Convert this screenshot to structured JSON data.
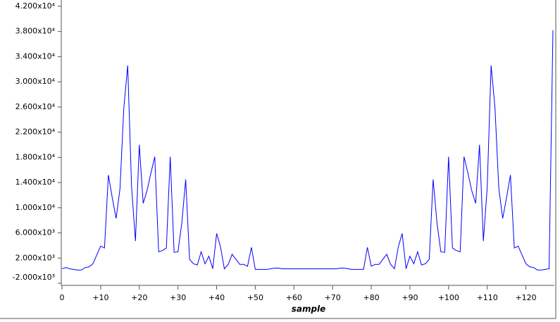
{
  "chart_data": {
    "type": "line",
    "x_label": "sample",
    "x": [
      0,
      1,
      2,
      3,
      4,
      5,
      6,
      7,
      8,
      9,
      10,
      11,
      12,
      13,
      14,
      15,
      16,
      17,
      18,
      19,
      20,
      21,
      22,
      23,
      24,
      25,
      26,
      27,
      28,
      29,
      30,
      31,
      32,
      33,
      34,
      35,
      36,
      37,
      38,
      39,
      40,
      41,
      42,
      43,
      44,
      45,
      46,
      47,
      48,
      49,
      50,
      51,
      52,
      53,
      54,
      55,
      56,
      57,
      58,
      59,
      60,
      61,
      62,
      63,
      64,
      65,
      66,
      67,
      68,
      69,
      70,
      71,
      72,
      73,
      74,
      75,
      76,
      77,
      78,
      79,
      80,
      81,
      82,
      83,
      84,
      85,
      86,
      87,
      88,
      89,
      90,
      91,
      92,
      93,
      94,
      95,
      96,
      97,
      98,
      99,
      100,
      101,
      102,
      103,
      104,
      105,
      106,
      107,
      108,
      109,
      110,
      111,
      112,
      113,
      114,
      115,
      116,
      117,
      118,
      119,
      120,
      121,
      122,
      123,
      124,
      125,
      126,
      127
    ],
    "series": [
      {
        "color": "#0000ff",
        "values": [
          300,
          500,
          300,
          200,
          100,
          100,
          500,
          600,
          1100,
          2500,
          3900,
          3600,
          15200,
          11600,
          8300,
          13000,
          25900,
          32600,
          13300,
          4700,
          20000,
          10700,
          12700,
          15500,
          18100,
          3000,
          3200,
          3600,
          18100,
          2900,
          3000,
          7600,
          14500,
          1800,
          1100,
          900,
          3000,
          1100,
          2300,
          300,
          5900,
          3800,
          300,
          1000,
          2600,
          1800,
          1000,
          1000,
          700,
          3700,
          200,
          200,
          200,
          200,
          300,
          400,
          400,
          300,
          300,
          300,
          300,
          300,
          300,
          300,
          300,
          300,
          300,
          300,
          300,
          300,
          300,
          300,
          400,
          400,
          300,
          200,
          200,
          200,
          200,
          3700,
          700,
          1000,
          1000,
          1800,
          2600,
          1000,
          300,
          3800,
          5900,
          300,
          2300,
          1100,
          3000,
          900,
          1100,
          1800,
          14500,
          7600,
          3000,
          2900,
          18100,
          3600,
          3200,
          3000,
          18100,
          15500,
          12700,
          10700,
          20000,
          4700,
          13300,
          32600,
          25900,
          13000,
          8300,
          11600,
          15200,
          3600,
          3900,
          2500,
          1100,
          600,
          500,
          100,
          100,
          200,
          300,
          38200
        ]
      }
    ],
    "xlim": [
      0,
      127
    ],
    "xticks": [
      {
        "value": 0,
        "label": "0"
      },
      {
        "value": 10,
        "label": "+10"
      },
      {
        "value": 20,
        "label": "+20"
      },
      {
        "value": 30,
        "label": "+30"
      },
      {
        "value": 40,
        "label": "+40"
      },
      {
        "value": 50,
        "label": "+50"
      },
      {
        "value": 60,
        "label": "+60"
      },
      {
        "value": 70,
        "label": "+70"
      },
      {
        "value": 80,
        "label": "+80"
      },
      {
        "value": 90,
        "label": "+90"
      },
      {
        "value": 100,
        "label": "+100"
      },
      {
        "value": 110,
        "label": "+110"
      },
      {
        "value": 120,
        "label": "+120"
      }
    ],
    "ylim": [
      -2000,
      43000
    ],
    "yticks": [
      {
        "value": 42000,
        "label": "4.200x10⁴"
      },
      {
        "value": 38000,
        "label": "3.800x10⁴"
      },
      {
        "value": 34000,
        "label": "3.400x10⁴"
      },
      {
        "value": 30000,
        "label": "3.000x10⁴"
      },
      {
        "value": 26000,
        "label": "2.600x10⁴"
      },
      {
        "value": 22000,
        "label": "2.200x10⁴"
      },
      {
        "value": 18000,
        "label": "1.800x10⁴"
      },
      {
        "value": 14000,
        "label": "1.400x10⁴"
      },
      {
        "value": 10000,
        "label": "1.000x10⁴"
      },
      {
        "value": 6000,
        "label": "6.000x10³"
      },
      {
        "value": 2000,
        "label": "2.000x10³"
      },
      {
        "value": -2000,
        "label": "-2.000x10³"
      }
    ],
    "grid": false
  }
}
